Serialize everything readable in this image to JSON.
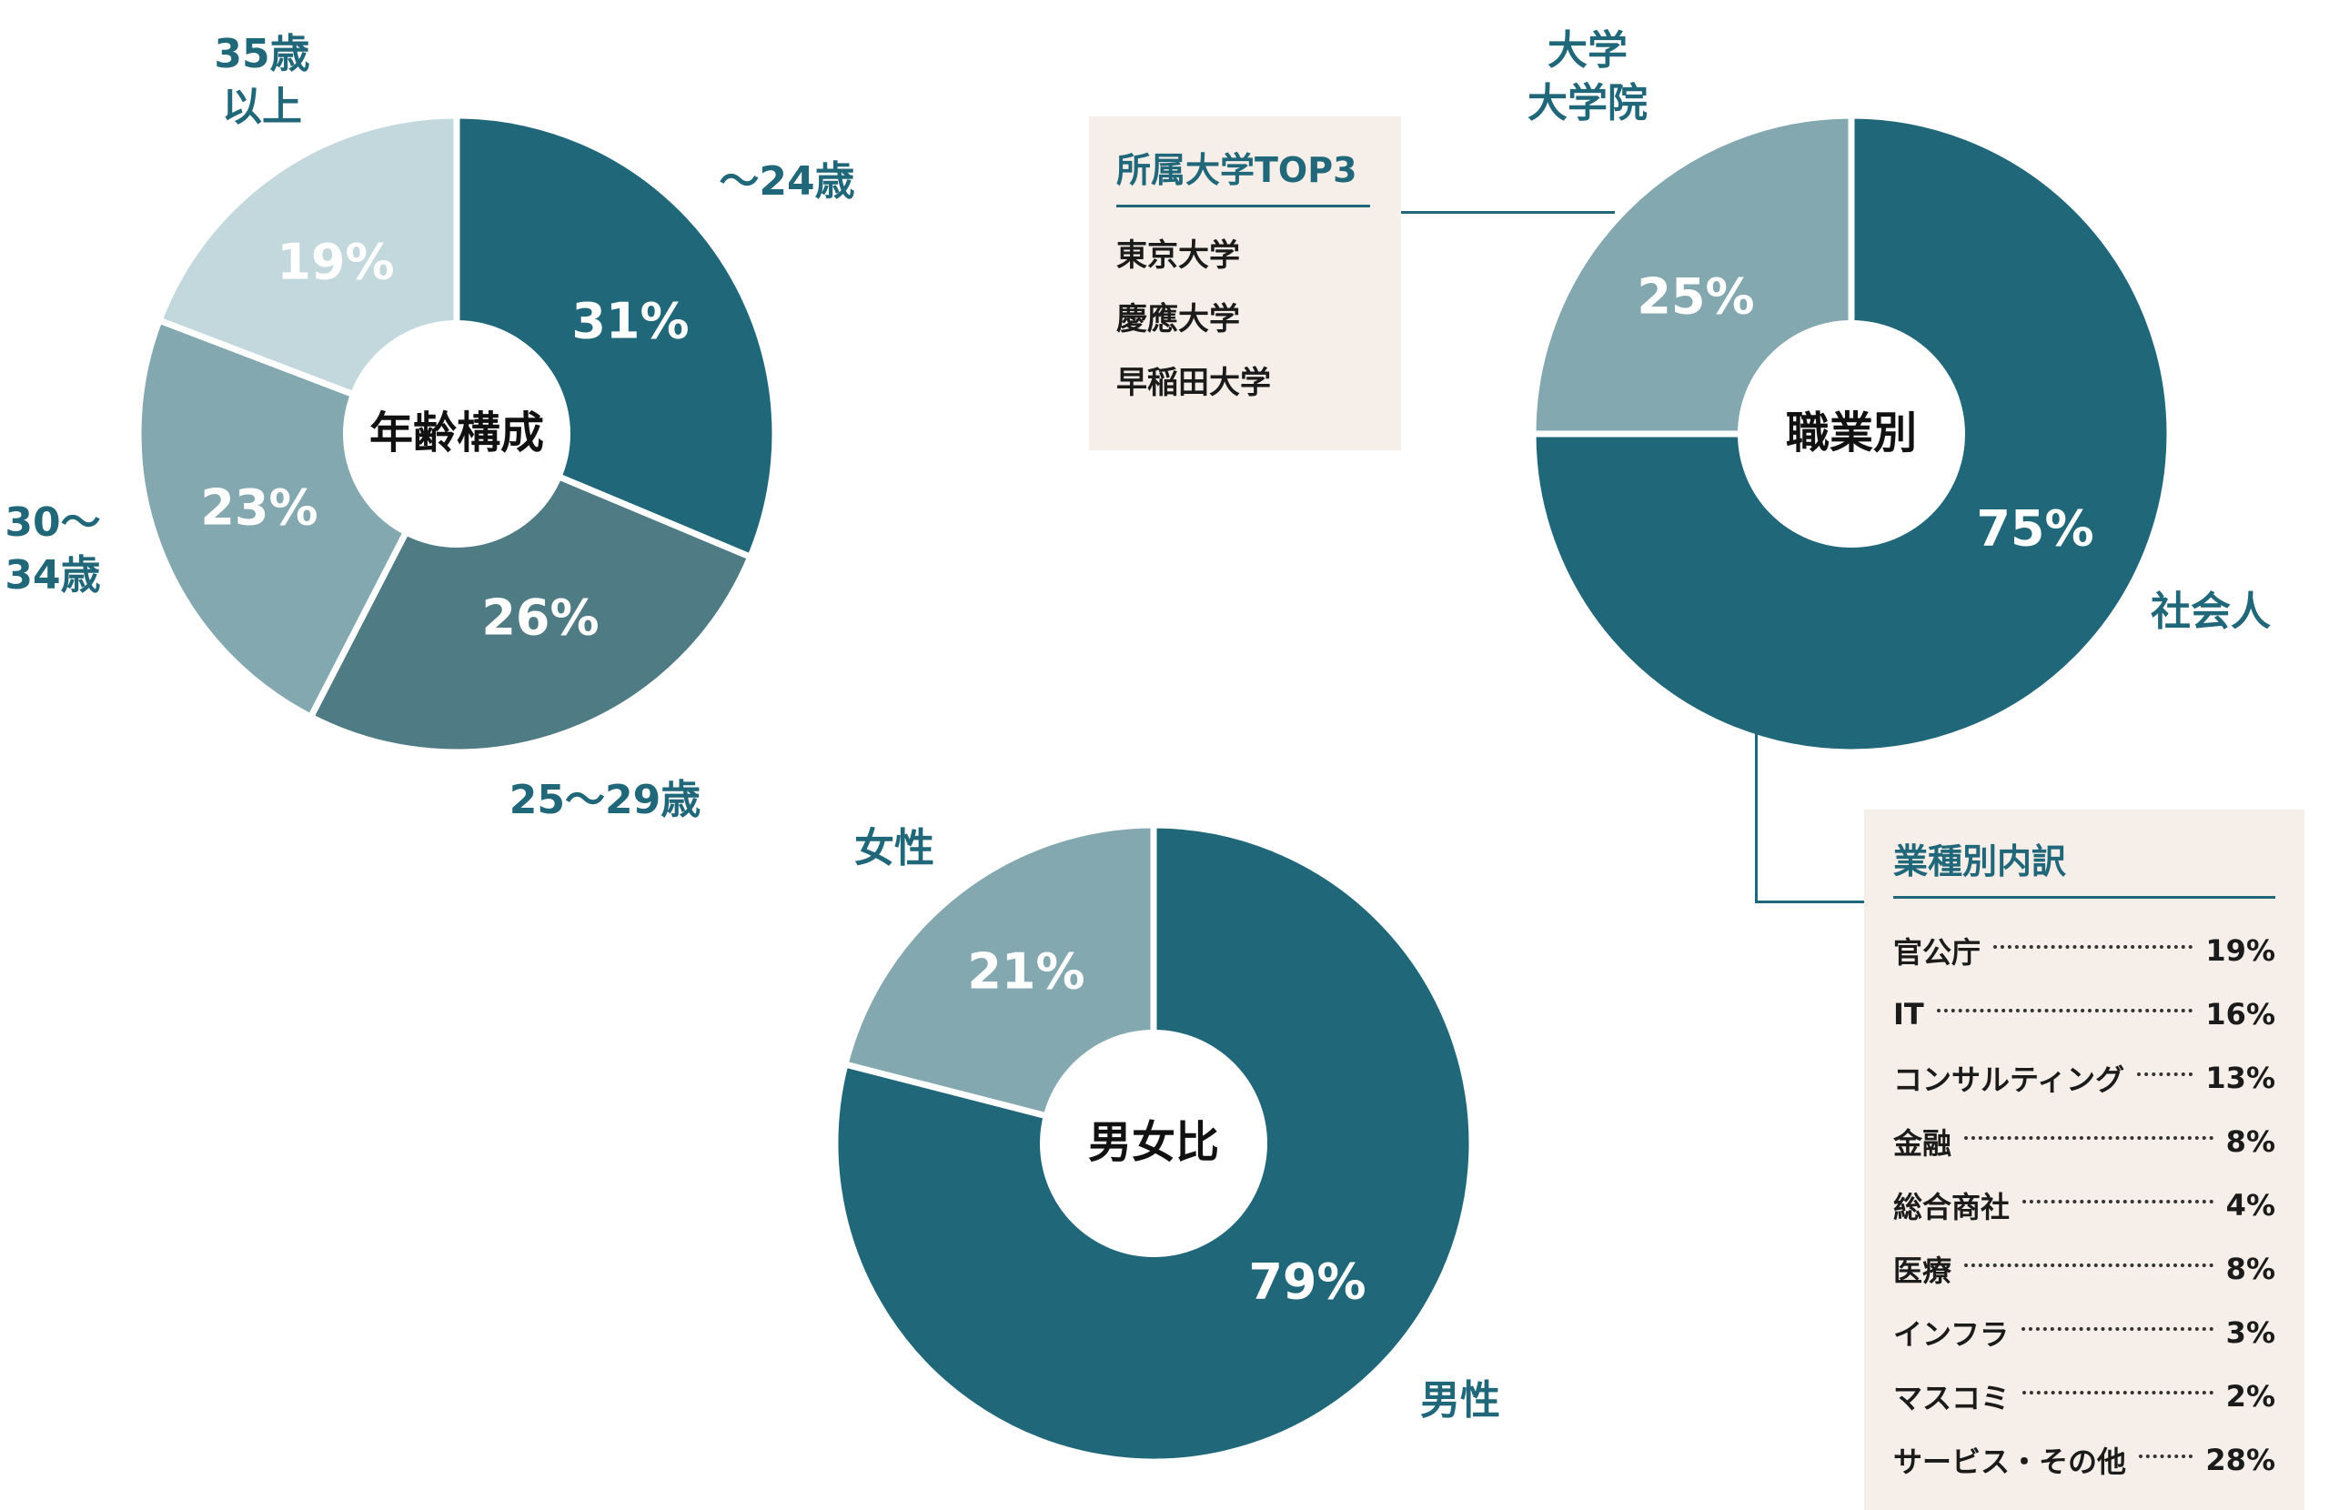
{
  "colors": {
    "dark": "#21677a",
    "mid": "#4f7b84",
    "light": "#84a8af",
    "pale": "#c2d8dd",
    "label": "#21677a",
    "box_bg": "#f6eee8"
  },
  "chart_data": [
    {
      "type": "pie",
      "center_label": "年齢構成",
      "slices": [
        {
          "label": "〜24歳",
          "value": 31,
          "value_label": "31%",
          "color": "#21677a"
        },
        {
          "label": "25〜29歳",
          "value": 26,
          "value_label": "26%",
          "color": "#4f7b84"
        },
        {
          "label": "30〜34歳",
          "value": 23,
          "value_label": "23%",
          "color": "#84a8af"
        },
        {
          "label": "35歳以上",
          "value": 19,
          "value_label": "19%",
          "color": "#c2d8dd"
        }
      ]
    },
    {
      "type": "pie",
      "center_label": "職業別",
      "slices": [
        {
          "label": "社会人",
          "value": 75,
          "value_label": "75%",
          "color": "#21677a"
        },
        {
          "label": "大学大学院",
          "value": 25,
          "value_label": "25%",
          "color": "#84a8af"
        }
      ]
    },
    {
      "type": "pie",
      "center_label": "男女比",
      "slices": [
        {
          "label": "男性",
          "value": 79,
          "value_label": "79%",
          "color": "#21677a"
        },
        {
          "label": "女性",
          "value": 21,
          "value_label": "21%",
          "color": "#84a8af"
        }
      ]
    }
  ],
  "university_box": {
    "title": "所属大学TOP3",
    "items": [
      "東京大学",
      "慶應大学",
      "早稲田大学"
    ]
  },
  "industry_box": {
    "title": "業種別内訳",
    "items": [
      {
        "name": "官公庁",
        "value": "19%"
      },
      {
        "name": "IT",
        "value": "16%"
      },
      {
        "name": "コンサルティング",
        "value": "13%"
      },
      {
        "name": "金融",
        "value": "8%"
      },
      {
        "name": "総合商社",
        "value": "4%"
      },
      {
        "name": "医療",
        "value": "8%"
      },
      {
        "name": "インフラ",
        "value": "3%"
      },
      {
        "name": "マスコミ",
        "value": "2%"
      },
      {
        "name": "サービス・その他",
        "value": "28%"
      }
    ]
  }
}
